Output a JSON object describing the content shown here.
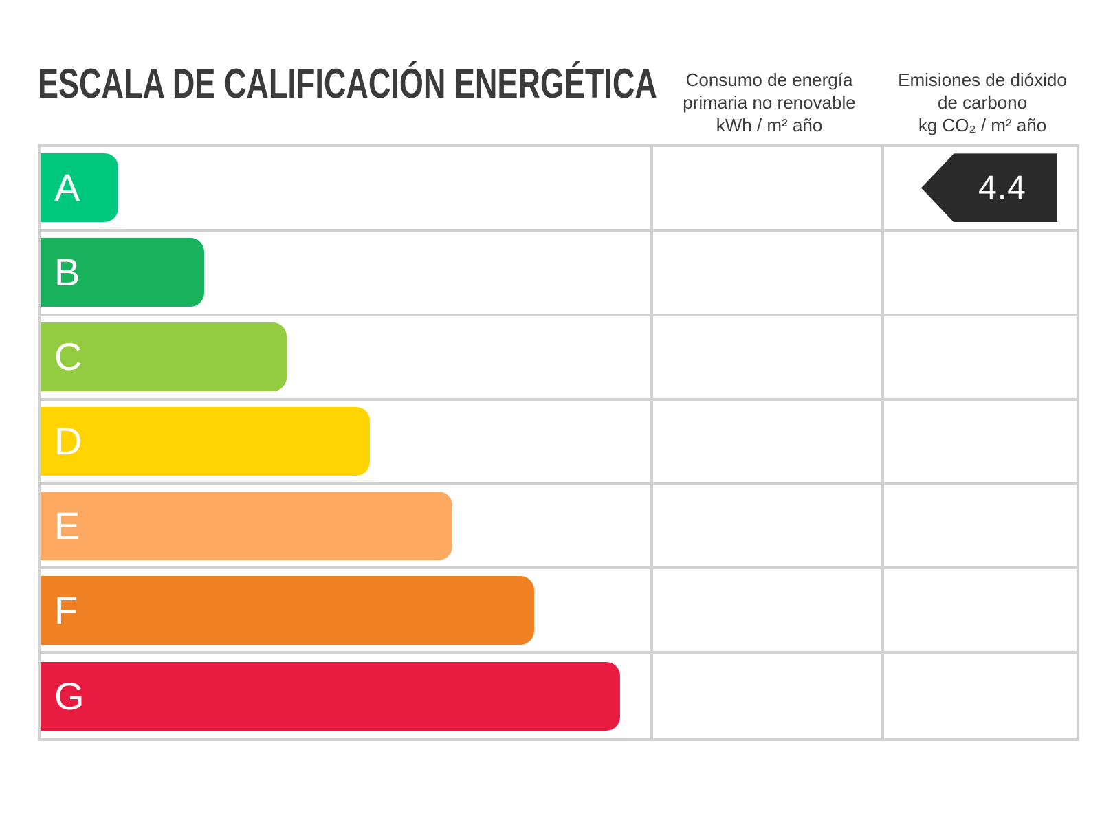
{
  "title": "ESCALA DE CALIFICACIÓN ENERGÉTICA",
  "headers": {
    "consumo": [
      "Consumo de energía",
      "primaria no renovable",
      "kWh / m² año"
    ],
    "emisiones": [
      "Emisiones de dióxido",
      "de carbono",
      "kg CO₂ / m² año"
    ]
  },
  "ratings": [
    {
      "letter": "A",
      "color": "#00c77e",
      "width_pct": 12.7
    },
    {
      "letter": "B",
      "color": "#17b25b",
      "width_pct": 26.8
    },
    {
      "letter": "C",
      "color": "#93cb41",
      "width_pct": 40.4
    },
    {
      "letter": "D",
      "color": "#ffd401",
      "width_pct": 54.0
    },
    {
      "letter": "E",
      "color": "#fda961",
      "width_pct": 67.5
    },
    {
      "letter": "F",
      "color": "#ef8124",
      "width_pct": 81.0
    },
    {
      "letter": "G",
      "color": "#e91b41",
      "width_pct": 95.0
    }
  ],
  "marker": {
    "value": "4.4",
    "row": "A",
    "column": "emisiones",
    "color": "#2b2b2b",
    "text_color": "#ffffff"
  },
  "colors": {
    "background": "#ffffff",
    "grid": "#d1d1d1",
    "text": "#3b3b3b",
    "bar_label": "#ffffff"
  },
  "chart_data": {
    "type": "bar",
    "orientation": "horizontal",
    "title": "ESCALA DE CALIFICACIÓN ENERGÉTICA",
    "categories": [
      "A",
      "B",
      "C",
      "D",
      "E",
      "F",
      "G"
    ],
    "values": [
      12.7,
      26.8,
      40.4,
      54.0,
      67.5,
      81.0,
      95.0
    ],
    "values_note": "bar lengths as percent of rating column width; decorative scale, no numeric axis shown",
    "bar_colors": [
      "#00c77e",
      "#17b25b",
      "#93cb41",
      "#ffd401",
      "#fda961",
      "#ef8124",
      "#e91b41"
    ],
    "columns": [
      {
        "label": "Consumo de energía primaria no renovable",
        "unit": "kWh / m² año",
        "values": {}
      },
      {
        "label": "Emisiones de dióxido de carbono",
        "unit": "kg CO₂ / m² año",
        "values": {
          "A": 4.4
        }
      }
    ],
    "grid": true,
    "legend": false
  }
}
